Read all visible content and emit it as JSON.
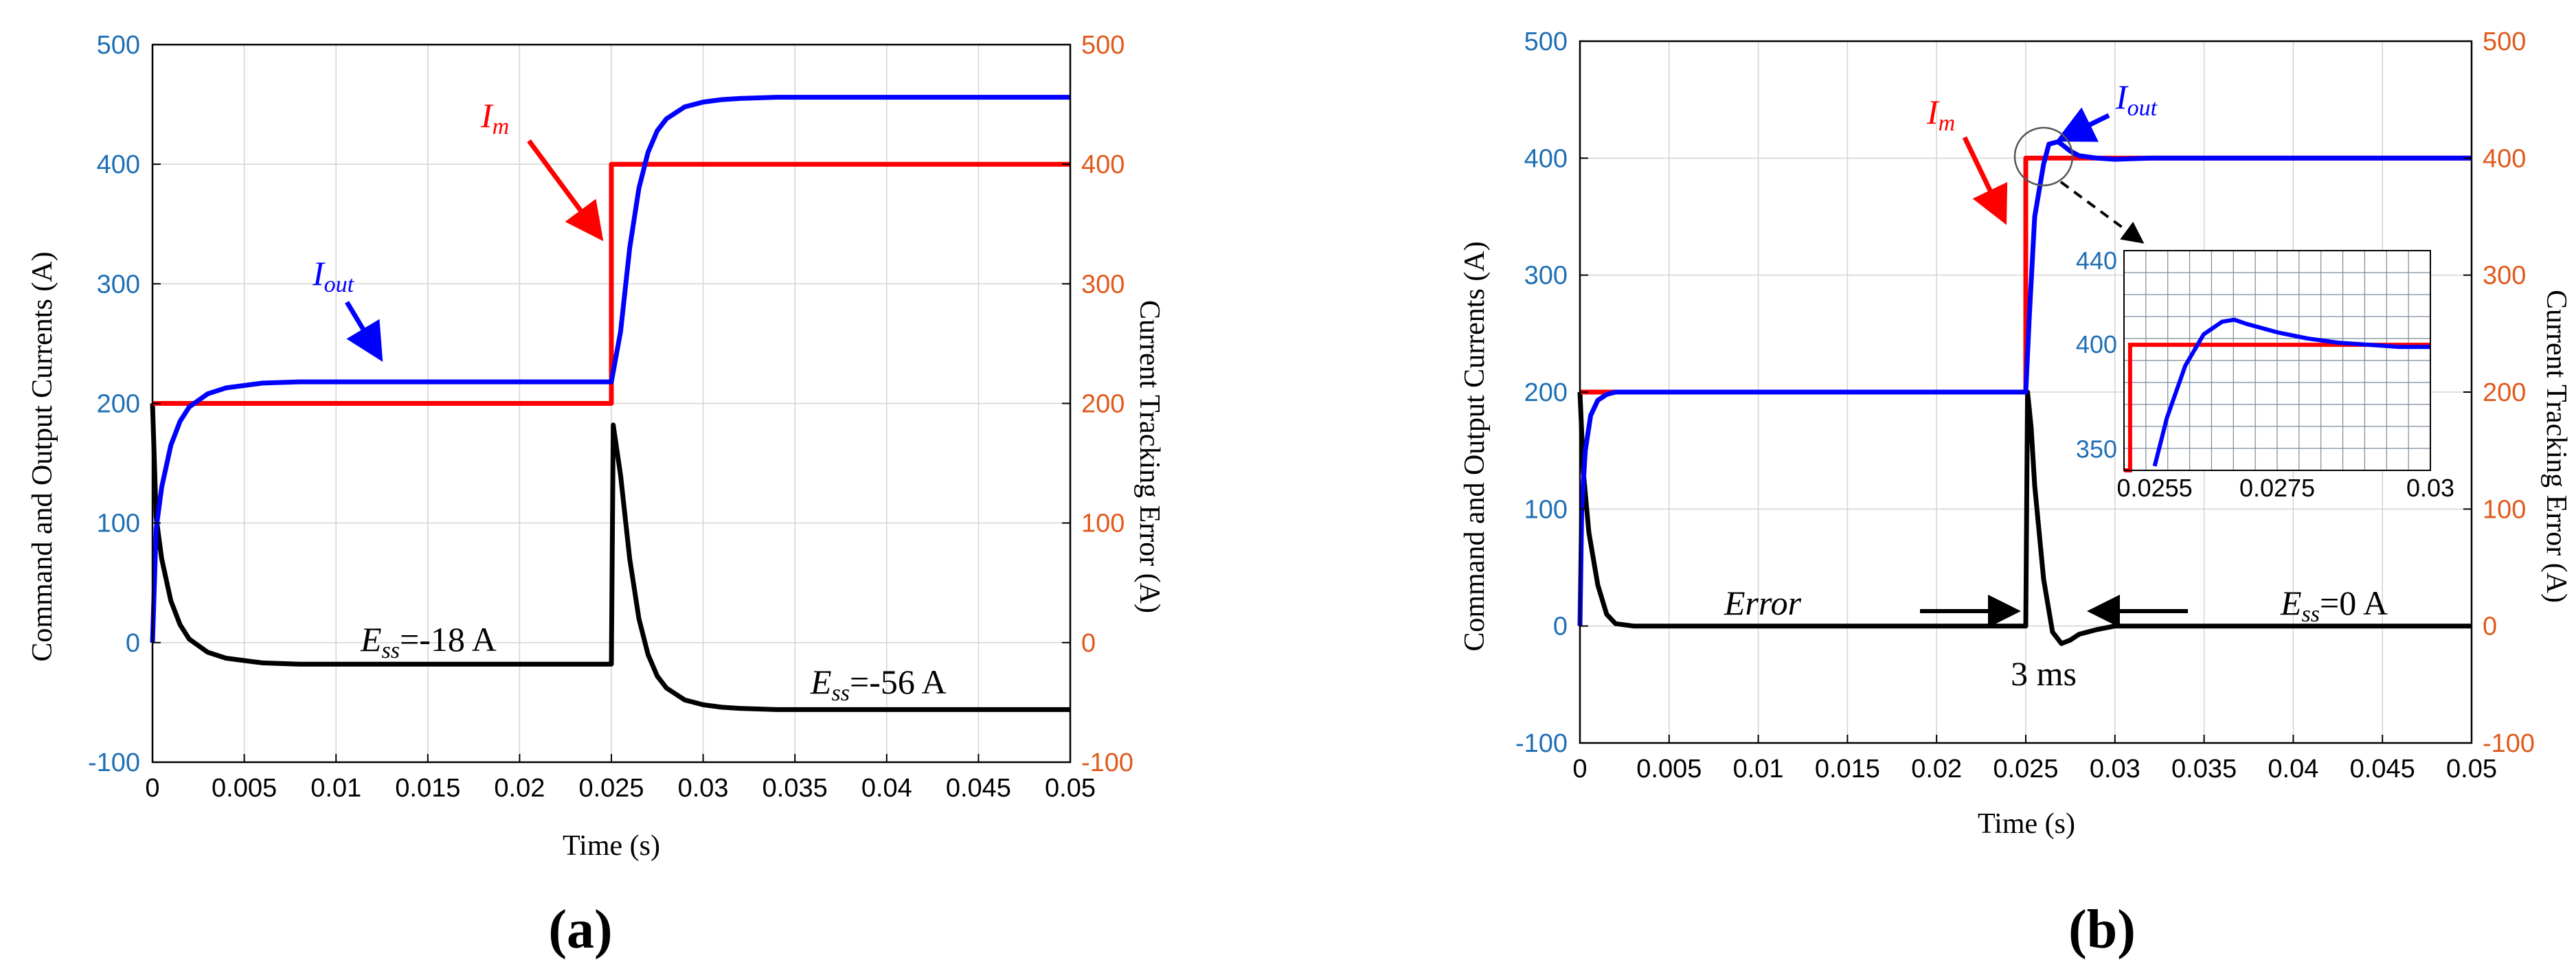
{
  "colors": {
    "left_axis": "#1f6fb5",
    "right_axis": "#e05a1c",
    "command": "#ff0000",
    "output": "#0000ff",
    "error": "#000000",
    "grid": "#d3d3d3"
  },
  "chart_data": [
    {
      "type": "line",
      "panel_label": "(a)",
      "xlabel": "Time (s)",
      "ylabel": "Command and Output Currents (A)",
      "y2label": "Current Tracking Error (A)",
      "xlim": [
        0,
        0.05
      ],
      "ylim": [
        -100,
        500
      ],
      "y2lim": [
        -100,
        500
      ],
      "grid": true,
      "x_ticks": [
        "0",
        "0.005",
        "0.01",
        "0.015",
        "0.02",
        "0.025",
        "0.03",
        "0.035",
        "0.04",
        "0.045",
        "0.05"
      ],
      "y_ticks": [
        "-100",
        "0",
        "100",
        "200",
        "300",
        "400",
        "500"
      ],
      "y2_ticks": [
        "-100",
        "0",
        "100",
        "200",
        "300",
        "400",
        "500"
      ],
      "series": [
        {
          "key": "command",
          "x": [
            0,
            0.025,
            0.025,
            0.05
          ],
          "y": [
            200,
            200,
            400,
            400
          ]
        },
        {
          "key": "output",
          "x": [
            0,
            0.0002,
            0.0005,
            0.001,
            0.0015,
            0.002,
            0.003,
            0.004,
            0.005,
            0.006,
            0.008,
            0.01,
            0.015,
            0.02,
            0.025,
            0.0255,
            0.026,
            0.0265,
            0.027,
            0.0275,
            0.028,
            0.029,
            0.03,
            0.031,
            0.032,
            0.034,
            0.036,
            0.04,
            0.05
          ],
          "y": [
            0,
            95,
            130,
            165,
            185,
            197,
            208,
            213,
            215,
            217,
            218,
            218,
            218,
            218,
            218,
            260,
            330,
            380,
            410,
            428,
            438,
            448,
            452,
            454,
            455,
            456,
            456,
            456,
            456
          ]
        },
        {
          "key": "error",
          "x": [
            0,
            0.0002,
            0.0005,
            0.001,
            0.0015,
            0.002,
            0.003,
            0.004,
            0.005,
            0.006,
            0.008,
            0.01,
            0.015,
            0.02,
            0.025,
            0.0251,
            0.0255,
            0.026,
            0.0265,
            0.027,
            0.0275,
            0.028,
            0.029,
            0.03,
            0.031,
            0.032,
            0.034,
            0.036,
            0.04,
            0.05
          ],
          "y": [
            200,
            105,
            70,
            35,
            15,
            3,
            -8,
            -13,
            -15,
            -17,
            -18,
            -18,
            -18,
            -18,
            -18,
            182,
            140,
            70,
            20,
            -10,
            -28,
            -38,
            -48,
            -52,
            -54,
            -55,
            -56,
            -56,
            -56,
            -56
          ]
        }
      ],
      "annotations": [
        {
          "key": "Im",
          "text": "I",
          "sub": "m"
        },
        {
          "key": "Iout",
          "text": "I",
          "sub": "out"
        },
        {
          "key": "ess1",
          "text": "E",
          "sub": "ss",
          "suffix": "=-18 A"
        },
        {
          "key": "ess2",
          "text": "E",
          "sub": "ss",
          "suffix": "=-56 A"
        }
      ]
    },
    {
      "type": "line",
      "panel_label": "(b)",
      "xlabel": "Time (s)",
      "ylabel": "Command and Output Currents (A)",
      "y2label": "Current Tracking Error (A)",
      "xlim": [
        0,
        0.05
      ],
      "ylim": [
        -100,
        500
      ],
      "y2lim": [
        -100,
        500
      ],
      "grid": true,
      "x_ticks": [
        "0",
        "0.005",
        "0.01",
        "0.015",
        "0.02",
        "0.025",
        "0.03",
        "0.035",
        "0.04",
        "0.045",
        "0.05"
      ],
      "y_ticks": [
        "-100",
        "0",
        "100",
        "200",
        "300",
        "400",
        "500"
      ],
      "y2_ticks": [
        "-100",
        "0",
        "100",
        "200",
        "300",
        "400",
        "500"
      ],
      "series": [
        {
          "key": "command",
          "x": [
            0,
            0.025,
            0.025,
            0.05
          ],
          "y": [
            200,
            200,
            400,
            400
          ]
        },
        {
          "key": "output",
          "x": [
            0,
            0.0001,
            0.0003,
            0.0006,
            0.001,
            0.0015,
            0.002,
            0.003,
            0.025,
            0.0252,
            0.0255,
            0.026,
            0.0263,
            0.0268,
            0.027,
            0.0275,
            0.028,
            0.029,
            0.03,
            0.032,
            0.05
          ],
          "y": [
            0,
            100,
            150,
            180,
            193,
            198,
            200,
            200,
            200,
            265,
            350,
            395,
            412,
            414,
            412,
            406,
            402,
            400,
            399,
            400,
            400
          ]
        },
        {
          "key": "error",
          "x": [
            0,
            0.0002,
            0.0005,
            0.001,
            0.0015,
            0.002,
            0.003,
            0.025,
            0.0251,
            0.0253,
            0.0255,
            0.026,
            0.0265,
            0.027,
            0.0275,
            0.028,
            0.029,
            0.03,
            0.032,
            0.05
          ],
          "y": [
            200,
            130,
            80,
            35,
            10,
            2,
            0,
            0,
            200,
            170,
            120,
            40,
            -5,
            -15,
            -12,
            -7,
            -3,
            0,
            0,
            0
          ]
        }
      ],
      "inset": {
        "xlim": [
          0.025,
          0.03
        ],
        "ylim": [
          340,
          445
        ],
        "x_ticks": [
          {
            "v": 0.0255,
            "label": "0.0255"
          },
          {
            "v": 0.0275,
            "label": "0.0275"
          },
          {
            "v": 0.03,
            "label": "0.03"
          }
        ],
        "y_ticks": [
          {
            "v": 350,
            "label": "350"
          },
          {
            "v": 400,
            "label": "400"
          },
          {
            "v": 440,
            "label": "440"
          }
        ],
        "command": {
          "x": [
            0.025,
            0.0251,
            0.0251,
            0.03
          ],
          "y": [
            340,
            340,
            400,
            400
          ]
        },
        "output": {
          "x": [
            0.0255,
            0.0257,
            0.026,
            0.0263,
            0.0266,
            0.0268,
            0.027,
            0.0275,
            0.028,
            0.0285,
            0.029,
            0.0295,
            0.03
          ],
          "y": [
            342,
            365,
            390,
            405,
            411,
            412,
            410,
            406,
            403,
            401,
            400,
            399,
            399
          ]
        }
      },
      "annotations": [
        {
          "key": "Im",
          "text": "I",
          "sub": "m"
        },
        {
          "key": "Iout",
          "text": "I",
          "sub": "out"
        },
        {
          "key": "error_label",
          "text": "Error"
        },
        {
          "key": "ms",
          "text": "3 ms"
        },
        {
          "key": "ess",
          "text": "E",
          "sub": "ss",
          "suffix": "=0 A"
        }
      ]
    }
  ]
}
